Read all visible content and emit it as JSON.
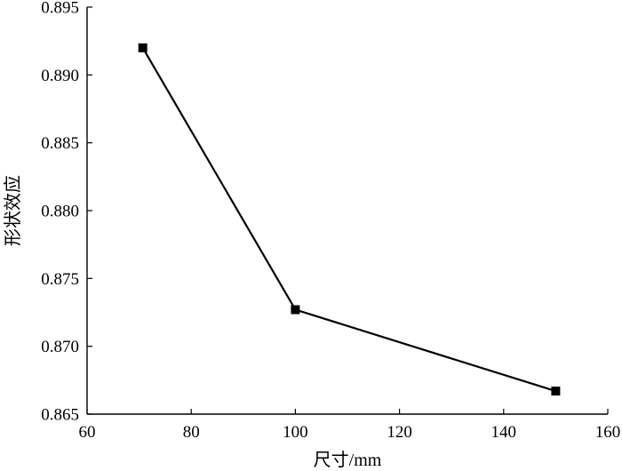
{
  "chart_data": {
    "type": "line",
    "title": "",
    "xlabel": "尺寸/mm",
    "ylabel": "形状效应",
    "xlim": [
      60,
      160
    ],
    "ylim": [
      0.865,
      0.895
    ],
    "xticks": [
      60,
      80,
      100,
      120,
      140,
      160
    ],
    "yticks": [
      0.865,
      0.87,
      0.875,
      0.88,
      0.885,
      0.89,
      0.895
    ],
    "xtick_labels": [
      "60",
      "80",
      "100",
      "120",
      "140",
      "160"
    ],
    "ytick_labels": [
      "0.865",
      "0.870",
      "0.875",
      "0.880",
      "0.885",
      "0.890",
      "0.895"
    ],
    "grid": false,
    "series": [
      {
        "x": [
          70.7,
          100,
          150
        ],
        "y": [
          0.892,
          0.8727,
          0.8667
        ],
        "color": "#000000",
        "marker": "square"
      }
    ]
  }
}
